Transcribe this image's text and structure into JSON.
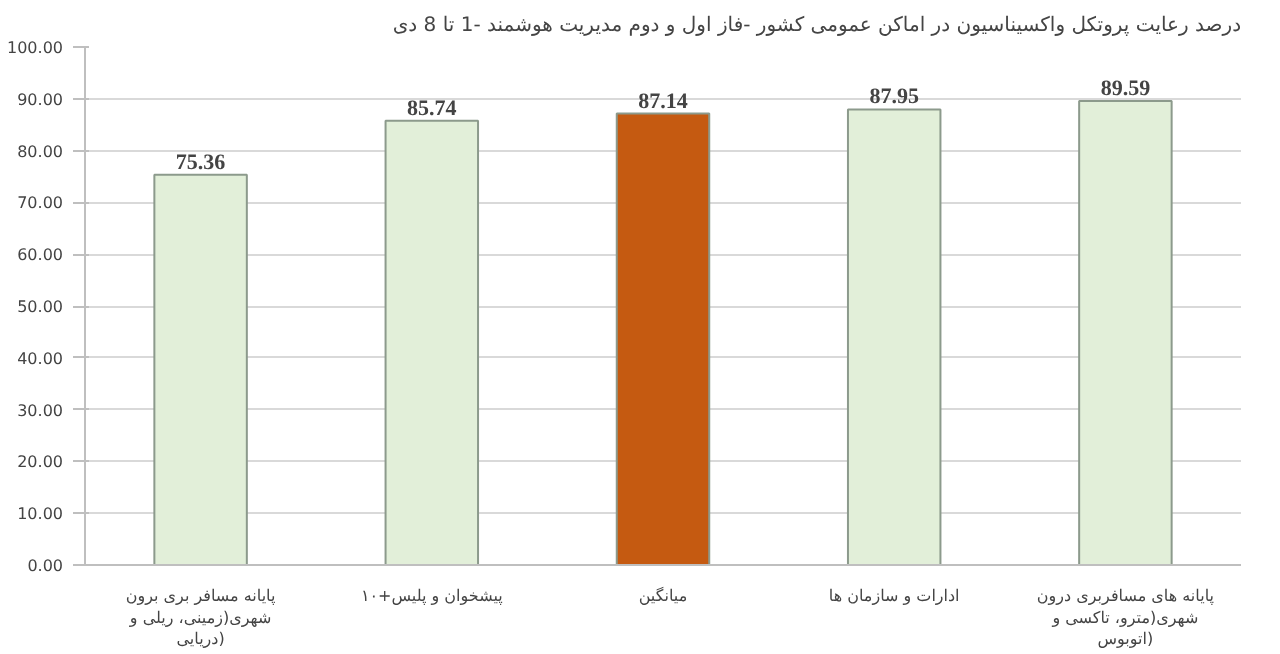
{
  "chart_data": {
    "type": "bar",
    "title": "درصد رعایت پروتکل واکسیناسیون در اماکن عمومی کشور -فاز اول و دوم مدیریت هوشمند -1 تا 8 دی",
    "categories": [
      "پایانه مسافر بری برون شهری(زمینی، ریلی و دریایی)",
      "پیشخوان و پلیس+۱۰",
      "میانگین",
      "ادارات و سازمان ها",
      "پایانه های مسافربری درون شهری(مترو، تاکسی و اتوبوس)"
    ],
    "values": [
      75.36,
      85.74,
      87.14,
      87.95,
      89.59
    ],
    "colors": [
      "#e2efd9",
      "#e2efd9",
      "#c55a11",
      "#e2efd9",
      "#e2efd9"
    ],
    "ylim": [
      0,
      100
    ],
    "yticks": [
      {
        "value": 0,
        "label": "0.00"
      },
      {
        "value": 10,
        "label": "10.00"
      },
      {
        "value": 20,
        "label": "20.00"
      },
      {
        "value": 30,
        "label": "30.00"
      },
      {
        "value": 40,
        "label": "40.00"
      },
      {
        "value": 50,
        "label": "50.00"
      },
      {
        "value": 60,
        "label": "60.00"
      },
      {
        "value": 70,
        "label": "70.00"
      },
      {
        "value": 80,
        "label": "80.00"
      },
      {
        "value": 90,
        "label": "90.00"
      },
      {
        "value": 100,
        "label": "100.00"
      }
    ],
    "grid": "y",
    "data_labels": true
  }
}
